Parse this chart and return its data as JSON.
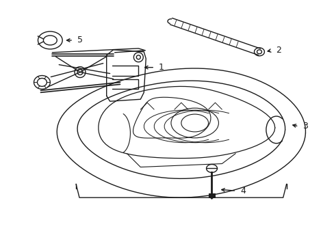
{
  "bg_color": "#ffffff",
  "line_color": "#1a1a1a",
  "lw": 1.0,
  "fig_w": 4.89,
  "fig_h": 3.6,
  "dpi": 100
}
